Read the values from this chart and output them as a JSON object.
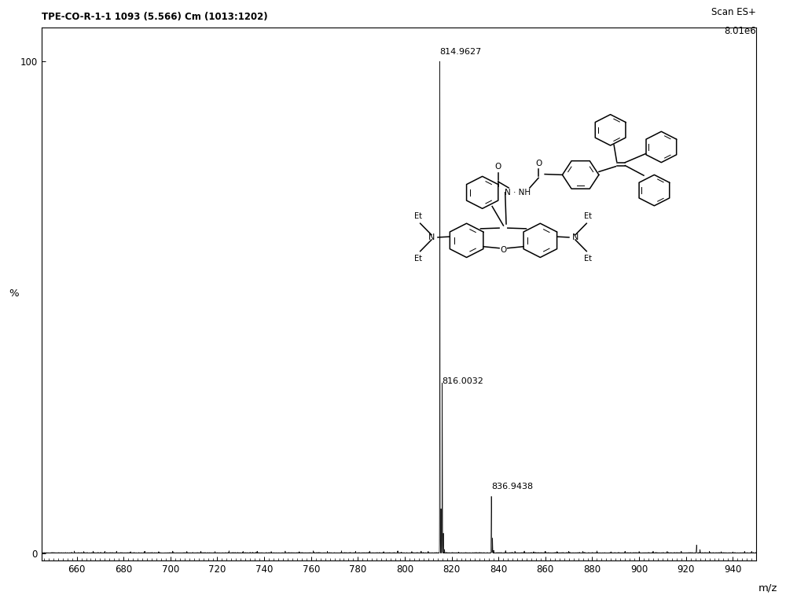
{
  "title_left": "TPE-CO-R-1-1 1093 (5.566) Cm (1013:1202)",
  "title_right_line1": "Scan ES+",
  "title_right_line2": "8.01e6",
  "ylabel": "%",
  "xlabel": "m/z",
  "xlim": [
    645,
    950
  ],
  "ylim": [
    -1.5,
    107
  ],
  "yticks": [
    0,
    100
  ],
  "xticks": [
    660,
    680,
    700,
    720,
    740,
    760,
    780,
    800,
    820,
    840,
    860,
    880,
    900,
    920,
    940
  ],
  "background_color": "#ffffff",
  "line_color": "#111111",
  "peaks": [
    {
      "mz": 814.9627,
      "intensity": 100.0,
      "label": "814.9627"
    },
    {
      "mz": 816.0032,
      "intensity": 33.0,
      "label": "816.0032"
    },
    {
      "mz": 836.9438,
      "intensity": 11.5,
      "label": "836.9438"
    }
  ],
  "noise_seed": 7,
  "title_fontsize": 8.5,
  "axis_fontsize": 8.5,
  "peak_label_fontsize": 8
}
